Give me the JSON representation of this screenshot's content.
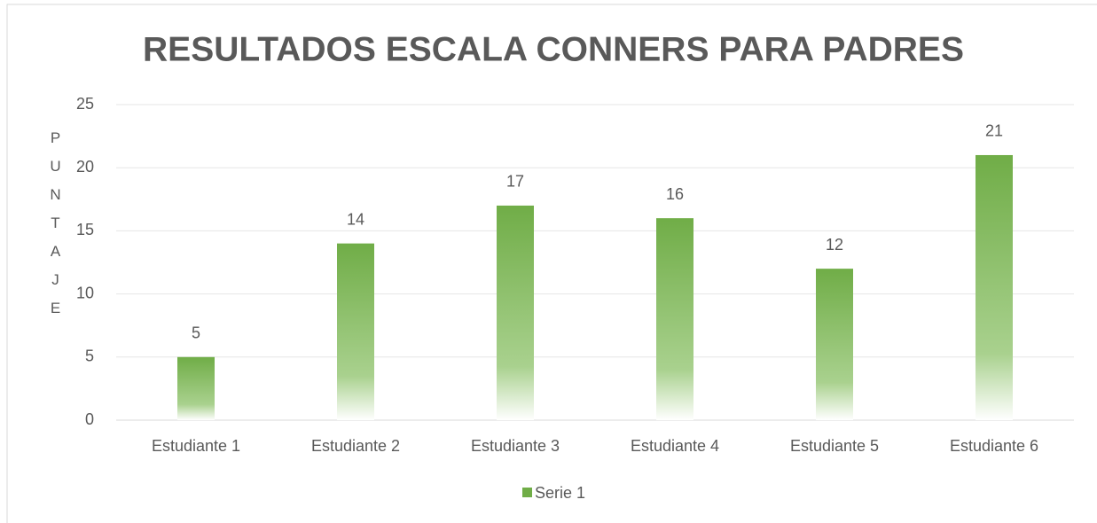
{
  "chart_data": {
    "type": "bar",
    "title": "RESULTADOS ESCALA CONNERS PARA PADRES",
    "y_label": "PUNTAJE",
    "categories": [
      "Estudiante 1",
      "Estudiante 2",
      "Estudiante 3",
      "Estudiante 4",
      "Estudiante 5",
      "Estudiante 6"
    ],
    "series": [
      {
        "name": "Serie 1",
        "color": "#70ad47",
        "values": [
          5,
          14,
          17,
          16,
          12,
          21
        ]
      }
    ],
    "ylim": [
      0,
      25
    ],
    "yticks": [
      0,
      5,
      10,
      15,
      20,
      25
    ],
    "grid": true,
    "legend": "bottom"
  }
}
